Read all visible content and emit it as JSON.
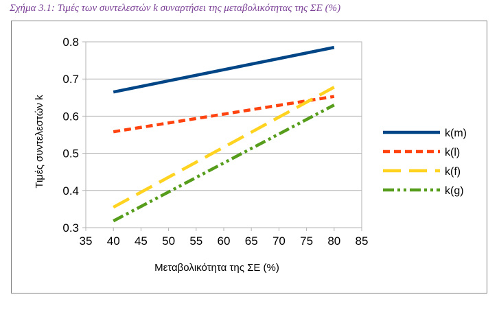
{
  "caption": "Σχήμα 3.1: Τιμές των συντελεστών k συναρτήσει της μεταβολικότητας της ΣΕ (%)",
  "chart_data": {
    "type": "line",
    "title": "Σχήμα 3.1: Τιμές των συντελεστών k συναρτήσει της μεταβολικότητας της ΣΕ (%)",
    "xlabel": "Μεταβολικότητα της ΣΕ (%)",
    "ylabel": "Τιμές συντελεστών k",
    "xlim": [
      35,
      85
    ],
    "ylim": [
      0.3,
      0.8
    ],
    "xticks": [
      35,
      40,
      45,
      50,
      55,
      60,
      65,
      70,
      75,
      80,
      85
    ],
    "yticks": [
      0.3,
      0.4,
      0.5,
      0.6,
      0.7,
      0.8
    ],
    "grid": "horizontal",
    "legend": "right",
    "series": [
      {
        "name": "k(m)",
        "x": [
          40,
          80
        ],
        "values": [
          0.665,
          0.785
        ],
        "color": "#004586",
        "dash": "solid"
      },
      {
        "name": "k(l)",
        "x": [
          40,
          80
        ],
        "values": [
          0.558,
          0.653
        ],
        "color": "#ff420e",
        "dash": "short-dash"
      },
      {
        "name": "k(f)",
        "x": [
          40,
          80
        ],
        "values": [
          0.355,
          0.678
        ],
        "color": "#ffd320",
        "dash": "long-dash"
      },
      {
        "name": "k(g)",
        "x": [
          40,
          80
        ],
        "values": [
          0.318,
          0.63
        ],
        "color": "#579d1c",
        "dash": "dash-dot-dot"
      }
    ]
  }
}
